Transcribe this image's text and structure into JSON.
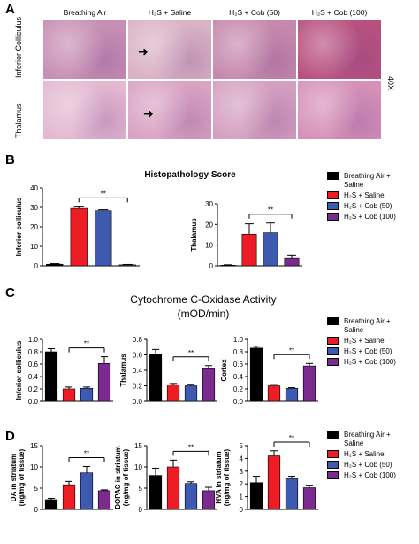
{
  "panel_a": {
    "letter": "A",
    "columns": [
      "Breathing Air",
      "H₂S + Saline",
      "H₂S + Cob (50)",
      "H₂S + Cob (100)"
    ],
    "rows": [
      "Inferior Colliculus",
      "Thalamus"
    ],
    "magnification": "40X",
    "tile_colors": [
      [
        "#c78fb4",
        "#d9b2c4",
        "#c689ad",
        "#b8517f"
      ],
      [
        "#e3b8d1",
        "#d9a3c3",
        "#d4a0c0",
        "#d691b8"
      ]
    ]
  },
  "legend": {
    "items": [
      {
        "label_1": "Breathing Air +",
        "label_2": "Saline",
        "color": "#000000"
      },
      {
        "label_1": "H₂S + Saline",
        "label_2": "",
        "color": "#ee1c24"
      },
      {
        "label_1": "H₂S + Cob (50)",
        "label_2": "",
        "color": "#3d59b0"
      },
      {
        "label_1": "H₂S + Cob (100)",
        "label_2": "",
        "color": "#7b2a8e"
      }
    ]
  },
  "panel_b": {
    "letter": "B",
    "title": "Histopathology Score"
  },
  "panel_c": {
    "letter": "C",
    "title_1": "Cytochrome C-Oxidase Activity",
    "title_2": "(mOD/min)"
  },
  "panel_d": {
    "letter": "D"
  },
  "chart_data": [
    {
      "id": "b1",
      "type": "bar",
      "ylabel": "Inferior colliculus",
      "ylim": [
        0,
        40
      ],
      "yticks": [
        "0",
        "10",
        "20",
        "30",
        "40"
      ],
      "values": [
        0.8,
        29.5,
        28.3,
        0.5
      ],
      "errors": [
        0.3,
        0.8,
        0.5,
        0.2
      ],
      "sig": "**",
      "sig_from": 1,
      "sig_to": 3
    },
    {
      "id": "b2",
      "type": "bar",
      "ylabel": "Thalamus",
      "ylim": [
        0,
        30
      ],
      "yticks": [
        "0",
        "10",
        "20",
        "30"
      ],
      "values": [
        0.3,
        15.3,
        16.0,
        3.8
      ],
      "errors": [
        0.2,
        5.0,
        4.7,
        1.2
      ],
      "sig": "**",
      "sig_from": 1,
      "sig_to": 3
    },
    {
      "id": "c1",
      "type": "bar",
      "ylabel": "Inferior colliculus",
      "ylim": [
        0,
        1.0
      ],
      "yticks": [
        "0.0",
        "0.2",
        "0.4",
        "0.6",
        "0.8",
        "1.0"
      ],
      "values": [
        0.8,
        0.2,
        0.21,
        0.61
      ],
      "errors": [
        0.05,
        0.03,
        0.02,
        0.11
      ],
      "sig": "**",
      "sig_from": 1,
      "sig_to": 3
    },
    {
      "id": "c2",
      "type": "bar",
      "ylabel": "Thalamus",
      "ylim": [
        0,
        0.8
      ],
      "yticks": [
        "0.0",
        "0.2",
        "0.4",
        "0.6",
        "0.8"
      ],
      "values": [
        0.61,
        0.21,
        0.2,
        0.43
      ],
      "errors": [
        0.06,
        0.02,
        0.02,
        0.03
      ],
      "sig": "**",
      "sig_from": 1,
      "sig_to": 3
    },
    {
      "id": "c3",
      "type": "bar",
      "ylabel": "Cortex",
      "ylim": [
        0,
        1.0
      ],
      "yticks": [
        "0.0",
        "0.2",
        "0.4",
        "0.6",
        "0.8",
        "1.0"
      ],
      "values": [
        0.86,
        0.25,
        0.21,
        0.57
      ],
      "errors": [
        0.03,
        0.02,
        0.01,
        0.04
      ],
      "sig": "**",
      "sig_from": 1,
      "sig_to": 3
    },
    {
      "id": "d1",
      "type": "bar",
      "ylabel": "DA in striatum",
      "ylabel2": "(ng/mg of tissue)",
      "ylim": [
        0,
        15
      ],
      "yticks": [
        "0",
        "5",
        "10",
        "15"
      ],
      "values": [
        2.3,
        5.8,
        8.6,
        4.4
      ],
      "errors": [
        0.3,
        0.8,
        1.5,
        0.2
      ],
      "sig": "**",
      "sig_from": 1,
      "sig_to": 3
    },
    {
      "id": "d2",
      "type": "bar",
      "ylabel": "DOPAC in striatum",
      "ylabel2": "(ng/mg of tissue)",
      "ylim": [
        0,
        15
      ],
      "yticks": [
        "0",
        "5",
        "10",
        "15"
      ],
      "values": [
        8.0,
        10.0,
        6.1,
        4.4
      ],
      "errors": [
        1.7,
        1.6,
        0.4,
        0.8
      ],
      "sig": "**",
      "sig_from": 1,
      "sig_to": 3
    },
    {
      "id": "d3",
      "type": "bar",
      "ylabel": "HVA in striatum",
      "ylabel2": "(ng/mg of tissue)",
      "ylim": [
        0,
        5
      ],
      "yticks": [
        "0",
        "1",
        "2",
        "3",
        "4",
        "5"
      ],
      "values": [
        2.1,
        4.2,
        2.4,
        1.7
      ],
      "errors": [
        0.5,
        0.4,
        0.2,
        0.2
      ],
      "sig": "**",
      "sig_from": 1,
      "sig_to": 3
    }
  ]
}
